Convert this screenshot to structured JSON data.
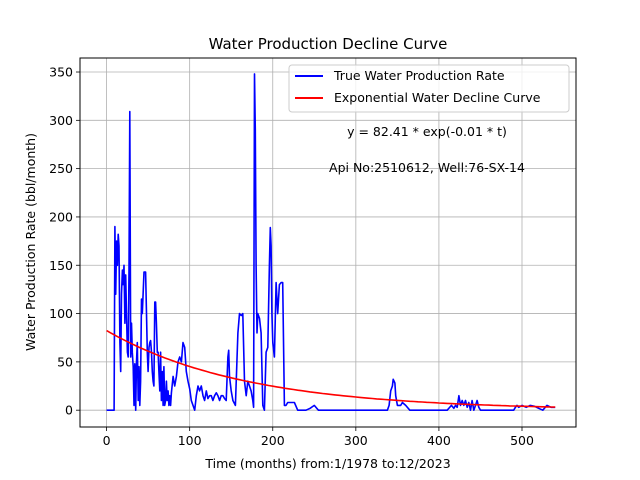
{
  "chart_data": {
    "type": "line",
    "title": "Water Production Decline Curve",
    "xlabel": "Time (months) from:1/1978 to:12/2023",
    "ylabel": "Water Production Rate (bbl/month)",
    "xlim": [
      -32,
      565
    ],
    "ylim": [
      -17.4,
      364.5
    ],
    "xticks": [
      0,
      100,
      200,
      300,
      400,
      500
    ],
    "yticks": [
      0,
      50,
      100,
      150,
      200,
      250,
      300,
      350
    ],
    "grid": true,
    "legend_position": "top-right",
    "annotations": [
      "y = 82.41 * exp(-0.01 * t)",
      "Api No:2510612, Well:76-SX-14"
    ],
    "fit": {
      "a": 82.41,
      "b": 0.006,
      "t_start": 0,
      "t_end": 540
    },
    "series": [
      {
        "name": "True Water Production Rate",
        "color": "#0000ff",
        "x": [
          0,
          5,
          9,
          10,
          11,
          12,
          13,
          14,
          15,
          16,
          17,
          18,
          19,
          20,
          21,
          22,
          23,
          24,
          25,
          26,
          27,
          28,
          29,
          30,
          31,
          32,
          33,
          34,
          35,
          36,
          37,
          38,
          39,
          40,
          41,
          42,
          43,
          44,
          45,
          46,
          47,
          48,
          49,
          50,
          51,
          52,
          53,
          54,
          55,
          56,
          57,
          58,
          59,
          60,
          61,
          62,
          63,
          64,
          65,
          66,
          67,
          68,
          69,
          70,
          71,
          72,
          73,
          74,
          75,
          76,
          77,
          78,
          80,
          82,
          84,
          86,
          88,
          90,
          92,
          94,
          96,
          98,
          100,
          102,
          104,
          106,
          108,
          110,
          112,
          114,
          116,
          118,
          120,
          122,
          124,
          126,
          128,
          130,
          132,
          134,
          136,
          138,
          140,
          142,
          144,
          146,
          147,
          148,
          150,
          152,
          155,
          158,
          160,
          162,
          164,
          166,
          168,
          170,
          172,
          174,
          176,
          177,
          178,
          179,
          180,
          181,
          182,
          184,
          186,
          188,
          190,
          192,
          194,
          196,
          197,
          198,
          199,
          200,
          202,
          204,
          206,
          208,
          210,
          212,
          214,
          216,
          218,
          220,
          222,
          224,
          226,
          230,
          235,
          240,
          245,
          250,
          255,
          260,
          270,
          280,
          290,
          300,
          310,
          320,
          330,
          338,
          340,
          342,
          344,
          345,
          346,
          347,
          348,
          350,
          352,
          354,
          356,
          360,
          365,
          370,
          380,
          390,
          400,
          410,
          415,
          418,
          420,
          422,
          424,
          426,
          428,
          430,
          432,
          434,
          436,
          438,
          440,
          442,
          444,
          446,
          448,
          450,
          455,
          460,
          470,
          480,
          490,
          492,
          494,
          496,
          500,
          505,
          510,
          515,
          520,
          525,
          530,
          535,
          540
        ],
        "values": [
          0,
          0,
          0,
          190,
          120,
          175,
          150,
          182,
          170,
          70,
          40,
          120,
          145,
          130,
          150,
          90,
          140,
          100,
          60,
          55,
          145,
          309,
          55,
          90,
          60,
          45,
          5,
          48,
          0,
          50,
          70,
          10,
          45,
          5,
          30,
          115,
          100,
          120,
          143,
          143,
          143,
          100,
          60,
          40,
          65,
          70,
          72,
          60,
          40,
          30,
          25,
          112,
          112,
          90,
          60,
          60,
          40,
          20,
          60,
          10,
          40,
          5,
          45,
          5,
          10,
          30,
          10,
          20,
          5,
          15,
          5,
          18,
          35,
          25,
          35,
          50,
          55,
          50,
          70,
          65,
          40,
          30,
          22,
          10,
          5,
          0,
          15,
          25,
          20,
          25,
          15,
          10,
          20,
          12,
          15,
          15,
          10,
          15,
          18,
          15,
          10,
          15,
          15,
          12,
          10,
          55,
          62,
          35,
          20,
          10,
          5,
          80,
          100,
          98,
          100,
          30,
          15,
          30,
          25,
          20,
          10,
          3,
          348,
          290,
          150,
          80,
          100,
          95,
          80,
          5,
          0,
          60,
          65,
          150,
          189,
          170,
          100,
          70,
          55,
          132,
          100,
          130,
          132,
          132,
          5,
          5,
          8,
          8,
          8,
          8,
          8,
          0,
          0,
          0,
          2,
          5,
          0,
          0,
          0,
          0,
          0,
          0,
          0,
          0,
          0,
          0,
          5,
          20,
          25,
          32,
          30,
          28,
          15,
          5,
          5,
          5,
          8,
          5,
          0,
          0,
          0,
          0,
          0,
          0,
          5,
          2,
          5,
          3,
          15,
          5,
          10,
          5,
          10,
          3,
          8,
          0,
          10,
          0,
          5,
          10,
          3,
          0,
          0,
          0,
          0,
          0,
          0,
          3,
          5,
          3,
          5,
          3,
          5,
          4,
          2,
          0,
          5,
          3,
          3
        ]
      },
      {
        "name": "Exponential Water Decline Curve",
        "color": "#ff0000"
      }
    ]
  }
}
